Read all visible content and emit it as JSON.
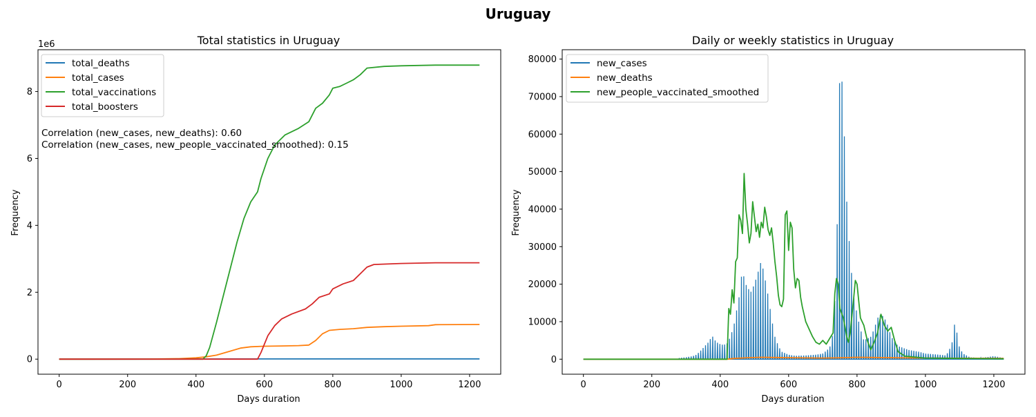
{
  "figure": {
    "title": "Uruguay",
    "note_lines": [
      "Correlation (new_cases, new_deaths): 0.60",
      "Correlation (new_cases, new_people_vaccinated_smoothed): 0.15"
    ]
  },
  "chart_data": [
    {
      "type": "line",
      "title": "Total statistics in Uruguay",
      "xlabel": "Days duration",
      "ylabel": "Frequency",
      "y_offset_label": "1e6",
      "xlim": [
        -62,
        1291
      ],
      "ylim": [
        -450000,
        9250000
      ],
      "xticks": [
        0,
        200,
        400,
        600,
        800,
        1000,
        1200
      ],
      "yticks": [
        0,
        2000000,
        4000000,
        6000000,
        8000000
      ],
      "ytick_labels": [
        "0",
        "2",
        "4",
        "6",
        "8"
      ],
      "legend_position": "upper-left",
      "series": [
        {
          "name": "total_deaths",
          "color": "#1f77b4",
          "points": [
            [
              0,
              0
            ],
            [
              300,
              3000
            ],
            [
              420,
              5000
            ],
            [
              500,
              6000
            ],
            [
              1000,
              7300
            ],
            [
              1229,
              7600
            ]
          ]
        },
        {
          "name": "total_cases",
          "color": "#ff7f0e",
          "points": [
            [
              0,
              0
            ],
            [
              250,
              3000
            ],
            [
              350,
              15000
            ],
            [
              400,
              40000
            ],
            [
              430,
              70000
            ],
            [
              460,
              120000
            ],
            [
              500,
              240000
            ],
            [
              530,
              330000
            ],
            [
              560,
              370000
            ],
            [
              600,
              385000
            ],
            [
              650,
              395000
            ],
            [
              700,
              405000
            ],
            [
              730,
              420000
            ],
            [
              750,
              560000
            ],
            [
              770,
              760000
            ],
            [
              790,
              860000
            ],
            [
              820,
              890000
            ],
            [
              860,
              910000
            ],
            [
              900,
              950000
            ],
            [
              950,
              970000
            ],
            [
              1000,
              985000
            ],
            [
              1080,
              1000000
            ],
            [
              1100,
              1030000
            ],
            [
              1229,
              1035000
            ]
          ]
        },
        {
          "name": "total_vaccinations",
          "color": "#2ca02c",
          "points": [
            [
              0,
              0
            ],
            [
              300,
              0
            ],
            [
              420,
              0
            ],
            [
              430,
              100000
            ],
            [
              440,
              350000
            ],
            [
              460,
              1100000
            ],
            [
              480,
              1900000
            ],
            [
              500,
              2700000
            ],
            [
              520,
              3500000
            ],
            [
              540,
              4200000
            ],
            [
              560,
              4700000
            ],
            [
              580,
              5000000
            ],
            [
              590,
              5400000
            ],
            [
              610,
              6000000
            ],
            [
              630,
              6400000
            ],
            [
              660,
              6700000
            ],
            [
              700,
              6900000
            ],
            [
              730,
              7100000
            ],
            [
              750,
              7500000
            ],
            [
              770,
              7650000
            ],
            [
              790,
              7900000
            ],
            [
              800,
              8100000
            ],
            [
              820,
              8150000
            ],
            [
              840,
              8250000
            ],
            [
              860,
              8350000
            ],
            [
              880,
              8500000
            ],
            [
              900,
              8700000
            ],
            [
              950,
              8750000
            ],
            [
              1000,
              8770000
            ],
            [
              1100,
              8790000
            ],
            [
              1229,
              8790000
            ]
          ]
        },
        {
          "name": "total_boosters",
          "color": "#d62728",
          "points": [
            [
              0,
              0
            ],
            [
              580,
              0
            ],
            [
              590,
              200000
            ],
            [
              610,
              700000
            ],
            [
              630,
              1000000
            ],
            [
              650,
              1200000
            ],
            [
              680,
              1350000
            ],
            [
              720,
              1500000
            ],
            [
              740,
              1650000
            ],
            [
              760,
              1850000
            ],
            [
              790,
              1950000
            ],
            [
              800,
              2100000
            ],
            [
              830,
              2250000
            ],
            [
              860,
              2350000
            ],
            [
              880,
              2550000
            ],
            [
              900,
              2750000
            ],
            [
              920,
              2830000
            ],
            [
              1000,
              2860000
            ],
            [
              1100,
              2880000
            ],
            [
              1229,
              2880000
            ]
          ]
        }
      ]
    },
    {
      "type": "line",
      "title": "Daily or weekly statistics in Uruguay",
      "xlabel": "Days duration",
      "ylabel": "Frequency",
      "xlim": [
        -62,
        1291
      ],
      "ylim": [
        -4000,
        82500
      ],
      "xticks": [
        0,
        200,
        400,
        600,
        800,
        1000,
        1200
      ],
      "yticks": [
        0,
        10000,
        20000,
        30000,
        40000,
        50000,
        60000,
        70000,
        80000
      ],
      "legend_position": "upper-left",
      "series": [
        {
          "name": "new_cases",
          "color": "#1f77b4",
          "style": "weekly-spikes",
          "points": [
            [
              280,
              300
            ],
            [
              300,
              500
            ],
            [
              320,
              800
            ],
            [
              330,
              1200
            ],
            [
              340,
              2000
            ],
            [
              350,
              3000
            ],
            [
              360,
              4000
            ],
            [
              370,
              5000
            ],
            [
              375,
              6800
            ],
            [
              380,
              5500
            ],
            [
              390,
              4500
            ],
            [
              400,
              4000
            ],
            [
              410,
              3800
            ],
            [
              420,
              4200
            ],
            [
              430,
              6000
            ],
            [
              440,
              9000
            ],
            [
              450,
              14000
            ],
            [
              460,
              19000
            ],
            [
              465,
              26500
            ],
            [
              470,
              21000
            ],
            [
              480,
              19000
            ],
            [
              490,
              18000
            ],
            [
              500,
              20000
            ],
            [
              510,
              23000
            ],
            [
              520,
              26300
            ],
            [
              530,
              22000
            ],
            [
              540,
              17000
            ],
            [
              550,
              11000
            ],
            [
              560,
              6000
            ],
            [
              570,
              3500
            ],
            [
              580,
              2000
            ],
            [
              600,
              1200
            ],
            [
              620,
              900
            ],
            [
              650,
              1000
            ],
            [
              680,
              1200
            ],
            [
              700,
              1500
            ],
            [
              720,
              3000
            ],
            [
              730,
              7000
            ],
            [
              740,
              24000
            ],
            [
              745,
              54000
            ],
            [
              750,
              78500
            ],
            [
              755,
              76000
            ],
            [
              760,
              66000
            ],
            [
              765,
              55000
            ],
            [
              770,
              42000
            ],
            [
              780,
              27000
            ],
            [
              790,
              17000
            ],
            [
              800,
              12000
            ],
            [
              810,
              8000
            ],
            [
              820,
              5000
            ],
            [
              840,
              6000
            ],
            [
              850,
              8000
            ],
            [
              860,
              11000
            ],
            [
              870,
              12000
            ],
            [
              880,
              11000
            ],
            [
              890,
              9000
            ],
            [
              900,
              6000
            ],
            [
              920,
              3500
            ],
            [
              950,
              2500
            ],
            [
              980,
              2000
            ],
            [
              1000,
              1500
            ],
            [
              1040,
              1200
            ],
            [
              1060,
              1000
            ],
            [
              1070,
              2500
            ],
            [
              1080,
              5000
            ],
            [
              1085,
              9200
            ],
            [
              1090,
              8500
            ],
            [
              1095,
              5000
            ],
            [
              1100,
              3000
            ],
            [
              1110,
              1500
            ],
            [
              1130,
              500
            ],
            [
              1160,
              300
            ],
            [
              1200,
              800
            ],
            [
              1229,
              300
            ]
          ]
        },
        {
          "name": "new_deaths",
          "color": "#ff7f0e",
          "points": [
            [
              0,
              0
            ],
            [
              420,
              0
            ],
            [
              440,
              200
            ],
            [
              480,
              400
            ],
            [
              520,
              500
            ],
            [
              560,
              450
            ],
            [
              600,
              400
            ],
            [
              700,
              300
            ],
            [
              760,
              400
            ],
            [
              800,
              500
            ],
            [
              850,
              450
            ],
            [
              1000,
              300
            ],
            [
              1229,
              200
            ]
          ]
        },
        {
          "name": "new_people_vaccinated_smoothed",
          "color": "#2ca02c",
          "points": [
            [
              0,
              0
            ],
            [
              420,
              0
            ],
            [
              425,
              13500
            ],
            [
              430,
              12000
            ],
            [
              435,
              18500
            ],
            [
              440,
              15000
            ],
            [
              445,
              26000
            ],
            [
              450,
              27000
            ],
            [
              455,
              38500
            ],
            [
              460,
              37000
            ],
            [
              465,
              33500
            ],
            [
              470,
              49500
            ],
            [
              475,
              40000
            ],
            [
              480,
              36000
            ],
            [
              485,
              31000
            ],
            [
              490,
              33500
            ],
            [
              495,
              42000
            ],
            [
              500,
              38000
            ],
            [
              505,
              34000
            ],
            [
              510,
              36000
            ],
            [
              515,
              32500
            ],
            [
              520,
              36500
            ],
            [
              525,
              35000
            ],
            [
              530,
              40500
            ],
            [
              535,
              38000
            ],
            [
              540,
              34500
            ],
            [
              545,
              33000
            ],
            [
              550,
              35000
            ],
            [
              555,
              31000
            ],
            [
              560,
              26000
            ],
            [
              565,
              22000
            ],
            [
              570,
              17000
            ],
            [
              575,
              14500
            ],
            [
              580,
              14000
            ],
            [
              585,
              16000
            ],
            [
              590,
              38500
            ],
            [
              595,
              39500
            ],
            [
              600,
              29000
            ],
            [
              605,
              36500
            ],
            [
              610,
              35000
            ],
            [
              615,
              24000
            ],
            [
              620,
              19000
            ],
            [
              625,
              21500
            ],
            [
              630,
              21000
            ],
            [
              635,
              16500
            ],
            [
              640,
              14000
            ],
            [
              645,
              12000
            ],
            [
              650,
              10000
            ],
            [
              660,
              8000
            ],
            [
              670,
              6000
            ],
            [
              680,
              4500
            ],
            [
              690,
              4000
            ],
            [
              700,
              5000
            ],
            [
              710,
              4000
            ],
            [
              720,
              5500
            ],
            [
              730,
              7000
            ],
            [
              735,
              17500
            ],
            [
              740,
              21500
            ],
            [
              745,
              20000
            ],
            [
              750,
              13500
            ],
            [
              760,
              11000
            ],
            [
              770,
              6000
            ],
            [
              775,
              4500
            ],
            [
              780,
              7000
            ],
            [
              790,
              16000
            ],
            [
              795,
              21000
            ],
            [
              800,
              20000
            ],
            [
              810,
              11000
            ],
            [
              820,
              9000
            ],
            [
              830,
              5000
            ],
            [
              840,
              2500
            ],
            [
              850,
              4500
            ],
            [
              860,
              7000
            ],
            [
              870,
              12000
            ],
            [
              880,
              9000
            ],
            [
              890,
              7500
            ],
            [
              900,
              8500
            ],
            [
              910,
              5000
            ],
            [
              920,
              2000
            ],
            [
              940,
              800
            ],
            [
              1000,
              300
            ],
            [
              1100,
              200
            ],
            [
              1229,
              100
            ]
          ]
        }
      ]
    }
  ]
}
